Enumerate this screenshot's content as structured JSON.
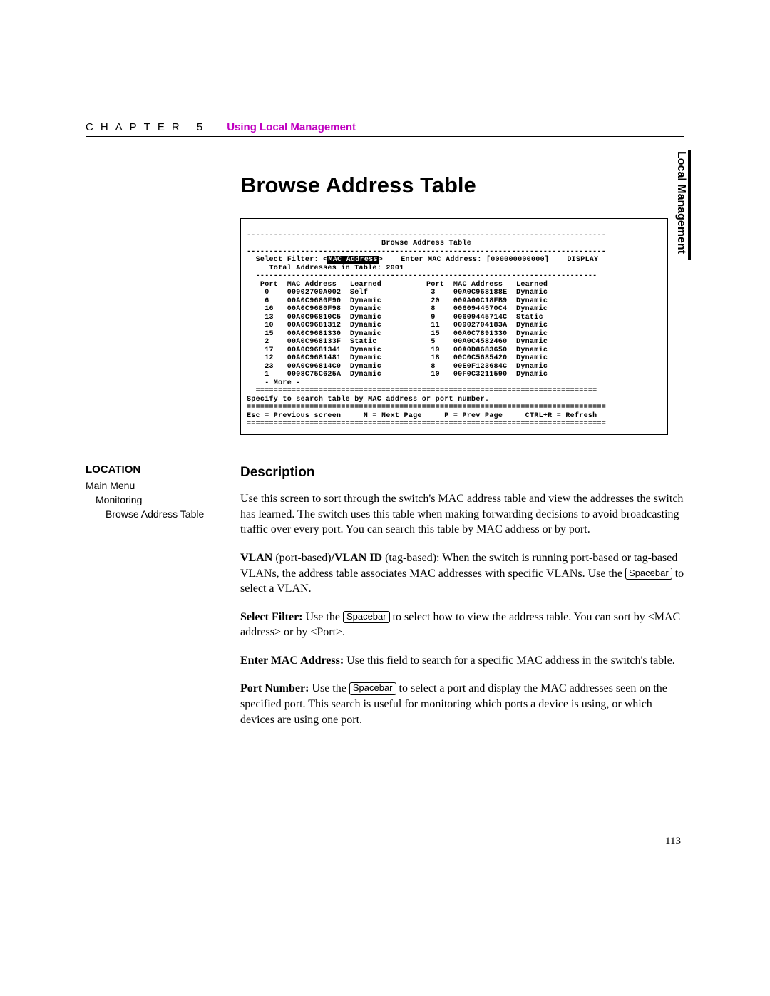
{
  "header": {
    "chapter": "CHAPTER 5",
    "title": "Using Local Management"
  },
  "side_tab": "Local Management",
  "main_title": "Browse Address Table",
  "terminal": {
    "dash_top": "--------------------------------------------------------------------------------",
    "title": "                              Browse Address Table",
    "dash2": "--------------------------------------------------------------------------------",
    "filter_pre": "  Select Filter: <",
    "filter_hl": "MAC Address",
    "filter_post": ">    Enter MAC Address: [000000000000]    DISPLAY",
    "total": "     Total Addresses in Table: 2001",
    "dash3": "  ----------------------------------------------------------------------------",
    "col_hdr": "   Port  MAC Address   Learned          Port  MAC Address   Learned",
    "rows": [
      "    0    00902700A002  Self              3    00A0C968188E  Dynamic",
      "    6    00A0C9680F90  Dynamic           20   00AA00C18FB9  Dynamic",
      "    16   00A0C9680F98  Dynamic           8    0060944570C4  Dynamic",
      "    13   00A0C96810C5  Dynamic           9    00609445714C  Static",
      "    10   00A0C9681312  Dynamic           11   00902704183A  Dynamic",
      "    15   00A0C9681330  Dynamic           15   00A0C7891330  Dynamic",
      "    2    00A0C968133F  Static            5    00A0C4582460  Dynamic",
      "    17   00A0C9681341  Dynamic           19   00A0D8683650  Dynamic",
      "    12   00A0C9681481  Dynamic           18   00C0C5685420  Dynamic",
      "    23   00A0C96814C0  Dynamic           8    00E0F123684C  Dynamic",
      "    1    0008C75C625A  Dynamic           10   00F0C3211590  Dynamic"
    ],
    "more": "    - More -",
    "eq1": "  ============================================================================",
    "hint": "Specify to search table by MAC address or port number.",
    "eq2": "================================================================================",
    "footer": "Esc = Previous screen     N = Next Page     P = Prev Page     CTRL+R = Refresh",
    "eq3": "================================================================================"
  },
  "location": {
    "heading": "LOCATION",
    "l1": "Main Menu",
    "l2": "Monitoring",
    "l3": "Browse Address Table"
  },
  "description": {
    "heading": "Description",
    "p1": "Use this screen to sort through the switch's MAC address table and view the addresses the switch has learned. The switch uses this table when making forwarding decisions to avoid broadcasting traffic over every port. You can search this table by MAC address or by port.",
    "p2_b1": "VLAN",
    "p2_mid1": " (port-based)",
    "p2_b2": "/VLAN ID",
    "p2_mid2": " (tag-based): When the switch is running port-based or tag-based VLANs, the address table associates MAC addresses with specific VLANs. Use the ",
    "p2_key": "Spacebar",
    "p2_end": " to select a VLAN.",
    "p3_b": "Select Filter:",
    "p3_a": " Use the ",
    "p3_key": "Spacebar",
    "p3_end": " to select how to view the address table. You can sort by <MAC address> or by <Port>.",
    "p4_b": "Enter MAC Address:",
    "p4_end": " Use this field to search for a specific MAC address in the switch's table.",
    "p5_b": "Port Number:",
    "p5_a": " Use the ",
    "p5_key": "Spacebar",
    "p5_end": " to select a port and display the MAC addresses seen on the specified port. This search is useful for monitoring which ports a device is using, or which devices are using one port."
  },
  "page_number": "113"
}
